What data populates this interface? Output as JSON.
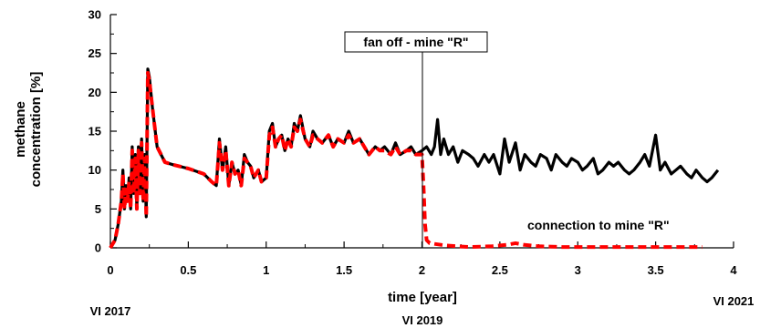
{
  "chart_data": {
    "type": "line",
    "xlabel": "time [year]",
    "ylabel_lines": [
      "methane",
      "concentration [%]"
    ],
    "xlim": [
      0,
      4
    ],
    "ylim": [
      0,
      30
    ],
    "x_ticks": [
      0,
      0.5,
      1,
      1.5,
      2,
      2.5,
      3,
      3.5,
      4
    ],
    "x_tick_labels": [
      "0",
      "0.5",
      "1",
      "1.5",
      "2",
      "2.5",
      "3",
      "3.5",
      "4"
    ],
    "y_ticks": [
      0,
      5,
      10,
      15,
      20,
      25,
      30
    ],
    "y_tick_labels": [
      "0",
      "5",
      "10",
      "15",
      "20",
      "25",
      "30"
    ],
    "date_labels": [
      "VI 2017",
      "VI 2019",
      "VI 2021"
    ],
    "grid": false,
    "series": [
      {
        "color": "#000000",
        "style": "solid",
        "x": [
          0,
          0.03,
          0.05,
          0.07,
          0.08,
          0.09,
          0.1,
          0.11,
          0.12,
          0.13,
          0.14,
          0.15,
          0.16,
          0.17,
          0.18,
          0.19,
          0.2,
          0.21,
          0.22,
          0.23,
          0.24,
          0.25,
          0.27,
          0.3,
          0.35,
          0.4,
          0.5,
          0.6,
          0.65,
          0.68,
          0.7,
          0.72,
          0.74,
          0.76,
          0.78,
          0.8,
          0.82,
          0.84,
          0.86,
          0.88,
          0.9,
          0.92,
          0.95,
          0.97,
          1.0,
          1.02,
          1.04,
          1.06,
          1.08,
          1.1,
          1.12,
          1.14,
          1.16,
          1.18,
          1.2,
          1.22,
          1.25,
          1.28,
          1.3,
          1.33,
          1.36,
          1.4,
          1.43,
          1.46,
          1.5,
          1.53,
          1.56,
          1.6,
          1.63,
          1.66,
          1.7,
          1.73,
          1.76,
          1.8,
          1.83,
          1.86,
          1.9,
          1.93,
          1.96,
          2.0,
          2.03,
          2.06,
          2.08,
          2.1,
          2.12,
          2.14,
          2.17,
          2.2,
          2.23,
          2.26,
          2.3,
          2.33,
          2.36,
          2.4,
          2.43,
          2.46,
          2.5,
          2.53,
          2.56,
          2.6,
          2.63,
          2.66,
          2.7,
          2.73,
          2.76,
          2.8,
          2.83,
          2.86,
          2.9,
          2.93,
          2.96,
          3.0,
          3.03,
          3.06,
          3.1,
          3.13,
          3.16,
          3.2,
          3.23,
          3.26,
          3.3,
          3.33,
          3.36,
          3.4,
          3.43,
          3.46,
          3.5,
          3.53,
          3.56,
          3.6,
          3.63,
          3.66,
          3.7,
          3.73,
          3.76,
          3.8,
          3.83,
          3.86,
          3.9
        ],
        "y": [
          0,
          1,
          3,
          6,
          10,
          5,
          8,
          6,
          9,
          5,
          13,
          7,
          12,
          5,
          13,
          7,
          14,
          6,
          12,
          4,
          23,
          22,
          18,
          13,
          11,
          10.7,
          10.2,
          9.5,
          8.5,
          8,
          14,
          10,
          13,
          8,
          11,
          9.5,
          10,
          8,
          12,
          11,
          10.5,
          9,
          10,
          8.5,
          9,
          15,
          16,
          13,
          14,
          14.5,
          12.5,
          14,
          13,
          16,
          15,
          17,
          14,
          13,
          15,
          14,
          13.5,
          14.5,
          13,
          14,
          13.5,
          15,
          13.5,
          14,
          13,
          12,
          13,
          12.5,
          13,
          12,
          13.5,
          12,
          12.5,
          13,
          12,
          12.5,
          13,
          12,
          13,
          16.5,
          12,
          14,
          12,
          13,
          11,
          12.5,
          12,
          11.5,
          10.5,
          12,
          11,
          12,
          9.5,
          14,
          11,
          13.5,
          10,
          12,
          11,
          10.5,
          12,
          11.5,
          10,
          12,
          11,
          10.5,
          11.5,
          11,
          10,
          10.5,
          11.5,
          9.5,
          10,
          11,
          10.5,
          11,
          10,
          9.5,
          10,
          11,
          12,
          10.5,
          14.5,
          10,
          11,
          9.5,
          10,
          10.5,
          9.5,
          9,
          10,
          9,
          8.5,
          9,
          10
        ]
      },
      {
        "color": "#ff0000",
        "style": "dashed",
        "x": [
          0,
          0.03,
          0.05,
          0.07,
          0.08,
          0.09,
          0.1,
          0.11,
          0.12,
          0.13,
          0.14,
          0.15,
          0.16,
          0.17,
          0.18,
          0.19,
          0.2,
          0.21,
          0.22,
          0.23,
          0.24,
          0.25,
          0.27,
          0.3,
          0.35,
          0.4,
          0.5,
          0.6,
          0.65,
          0.68,
          0.7,
          0.72,
          0.74,
          0.76,
          0.78,
          0.8,
          0.82,
          0.84,
          0.86,
          0.88,
          0.9,
          0.92,
          0.95,
          0.97,
          1.0,
          1.02,
          1.04,
          1.06,
          1.08,
          1.1,
          1.12,
          1.14,
          1.16,
          1.18,
          1.2,
          1.22,
          1.25,
          1.28,
          1.3,
          1.33,
          1.36,
          1.4,
          1.43,
          1.46,
          1.5,
          1.53,
          1.56,
          1.6,
          1.63,
          1.66,
          1.7,
          1.73,
          1.76,
          1.8,
          1.83,
          1.86,
          1.9,
          1.93,
          1.96,
          2.0,
          2.01,
          2.02,
          2.03,
          2.05,
          2.08,
          2.15,
          2.3,
          2.45,
          2.55,
          2.6,
          2.65,
          2.75,
          2.9,
          3.0,
          3.2,
          3.4,
          3.6,
          3.8
        ],
        "y": [
          0,
          1,
          3,
          6,
          9.5,
          5,
          7.5,
          6,
          8.5,
          5,
          12.5,
          7,
          11.5,
          5,
          12.5,
          7,
          13.5,
          6,
          11.5,
          4,
          22.5,
          21.5,
          18,
          13,
          11,
          10.7,
          10.2,
          9.5,
          8.5,
          8,
          13.5,
          10,
          12.5,
          8,
          11,
          9.5,
          10,
          8,
          11.5,
          11,
          10.5,
          9,
          10,
          8.5,
          9,
          14.5,
          15.5,
          13,
          14,
          14.5,
          12.5,
          14,
          13,
          15.5,
          15,
          16.5,
          14,
          13,
          14.5,
          14,
          13.5,
          14.5,
          13,
          14,
          13.5,
          14.5,
          13.5,
          14,
          13,
          12,
          13,
          12.5,
          12.5,
          12,
          13,
          12,
          12.5,
          12.5,
          12,
          12,
          8,
          3,
          1,
          0.6,
          0.5,
          0.3,
          0.1,
          0.2,
          0.4,
          0.6,
          0.4,
          0.2,
          0.1,
          0.1,
          0.1,
          0.1,
          0.1,
          0.1
        ]
      }
    ],
    "annotations": {
      "fan_off": {
        "text": "fan off - mine \"R\"",
        "x": 2.0
      },
      "connection": {
        "text": "connection to mine  \"R\""
      }
    }
  }
}
